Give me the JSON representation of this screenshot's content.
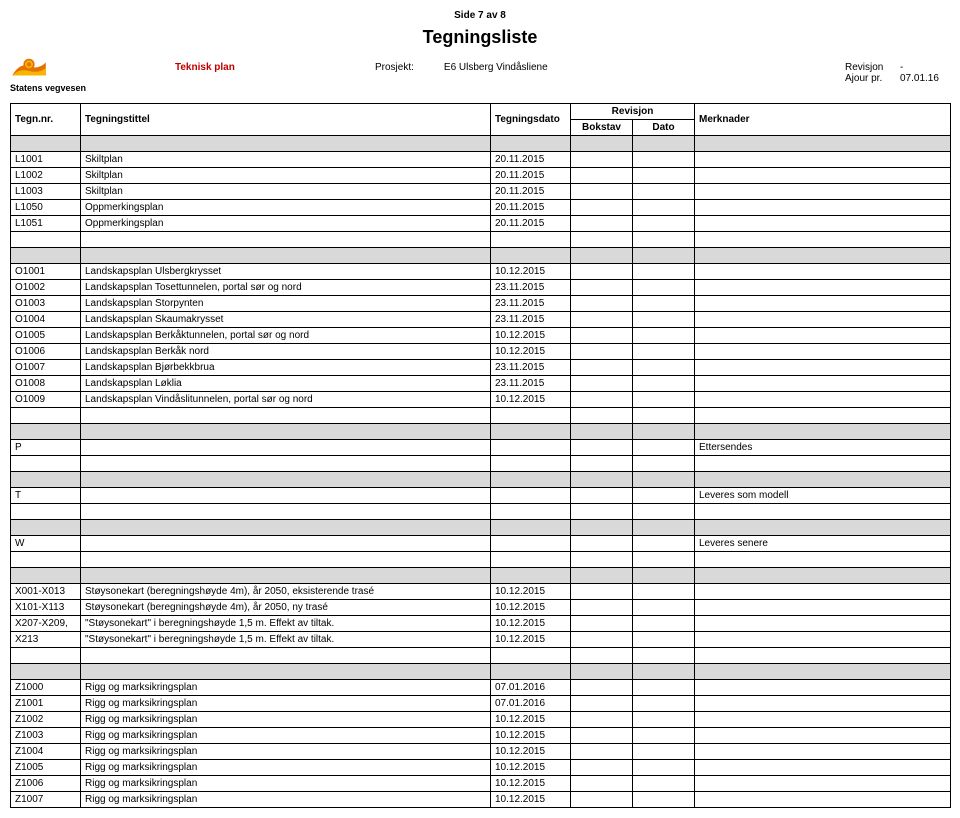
{
  "page_indicator": "Side 7 av 8",
  "title": "Tegningsliste",
  "teknisk": "Teknisk plan",
  "prosjekt_label": "Prosjekt:",
  "prosjekt_value": "E6 Ulsberg Vindåsliene",
  "revision_label": "Revisjon",
  "revision_value": "-",
  "ajour_label": "Ajour pr.",
  "ajour_value": "07.01.16",
  "logo_text": "Statens vegvesen",
  "headers": {
    "tegn_nr": "Tegn.nr.",
    "tegningstittel": "Tegningstittel",
    "tegningsdato": "Tegningsdato",
    "revisjon": "Revisjon",
    "bokstav": "Bokstav",
    "dato": "Dato",
    "merknader": "Merknader"
  },
  "sections": [
    {
      "rows": [
        {
          "nr": "L1001",
          "t": "Skiltplan",
          "d": "20.11.2015"
        },
        {
          "nr": "L1002",
          "t": "Skiltplan",
          "d": "20.11.2015"
        },
        {
          "nr": "L1003",
          "t": "Skiltplan",
          "d": "20.11.2015"
        },
        {
          "nr": "L1050",
          "t": "Oppmerkingsplan",
          "d": "20.11.2015"
        },
        {
          "nr": "L1051",
          "t": "Oppmerkingsplan",
          "d": "20.11.2015"
        }
      ],
      "blank_after": 1
    },
    {
      "rows": [
        {
          "nr": "O1001",
          "t": "Landskapsplan Ulsbergkrysset",
          "d": "10.12.2015"
        },
        {
          "nr": "O1002",
          "t": "Landskapsplan Tosettunnelen, portal sør og nord",
          "d": "23.11.2015"
        },
        {
          "nr": "O1003",
          "t": "Landskapsplan Storpynten",
          "d": "23.11.2015"
        },
        {
          "nr": "O1004",
          "t": "Landskapsplan Skaumakrysset",
          "d": "23.11.2015"
        },
        {
          "nr": "O1005",
          "t": "Landskapsplan Berkåktunnelen, portal sør og nord",
          "d": "10.12.2015"
        },
        {
          "nr": "O1006",
          "t": "Landskapsplan Berkåk nord",
          "d": "10.12.2015"
        },
        {
          "nr": "O1007",
          "t": "Landskapsplan Bjørbekkbrua",
          "d": "23.11.2015"
        },
        {
          "nr": "O1008",
          "t": "Landskapsplan Løklia",
          "d": "23.11.2015"
        },
        {
          "nr": "O1009",
          "t": "Landskapsplan Vindåslitunnelen, portal sør og nord",
          "d": "10.12.2015"
        }
      ],
      "blank_after": 1
    },
    {
      "rows": [
        {
          "nr": "P",
          "t": "",
          "d": "",
          "m": "Ettersendes"
        }
      ],
      "blank_after": 1
    },
    {
      "rows": [
        {
          "nr": "T",
          "t": "",
          "d": "",
          "m": "Leveres som modell"
        }
      ],
      "blank_after": 1
    },
    {
      "rows": [
        {
          "nr": "W",
          "t": "",
          "d": "",
          "m": "Leveres senere"
        }
      ],
      "blank_after": 1
    },
    {
      "rows": [
        {
          "nr": "X001-X013",
          "t": "Støysonekart (beregningshøyde 4m), år 2050, eksisterende trasé",
          "d": "10.12.2015"
        },
        {
          "nr": "X101-X113",
          "t": "Støysonekart (beregningshøyde 4m), år 2050, ny trasé",
          "d": "10.12.2015"
        },
        {
          "nr": "X207-X209,",
          "t": "\"Støysonekart\" i beregningshøyde 1,5 m. Effekt av tiltak.",
          "d": "10.12.2015"
        },
        {
          "nr": "X213",
          "t": "\"Støysonekart\" i beregningshøyde 1,5 m. Effekt av tiltak.",
          "d": "10.12.2015"
        }
      ],
      "blank_after": 1
    },
    {
      "rows": [
        {
          "nr": "Z1000",
          "t": "Rigg og marksikringsplan",
          "d": "07.01.2016"
        },
        {
          "nr": "Z1001",
          "t": "Rigg og marksikringsplan",
          "d": "07.01.2016"
        },
        {
          "nr": "Z1002",
          "t": "Rigg og marksikringsplan",
          "d": "10.12.2015"
        },
        {
          "nr": "Z1003",
          "t": "Rigg og marksikringsplan",
          "d": "10.12.2015"
        },
        {
          "nr": "Z1004",
          "t": "Rigg og marksikringsplan",
          "d": "10.12.2015"
        },
        {
          "nr": "Z1005",
          "t": "Rigg og marksikringsplan",
          "d": "10.12.2015"
        },
        {
          "nr": "Z1006",
          "t": "Rigg og marksikringsplan",
          "d": "10.12.2015"
        },
        {
          "nr": "Z1007",
          "t": "Rigg og marksikringsplan",
          "d": "10.12.2015"
        }
      ],
      "blank_after": 0
    }
  ],
  "colors": {
    "grey_fill": "#d9d9d9",
    "border": "#000000",
    "teknisk_red": "#c00000",
    "logo_orange": "#e57200",
    "logo_yellow": "#f7b500"
  }
}
